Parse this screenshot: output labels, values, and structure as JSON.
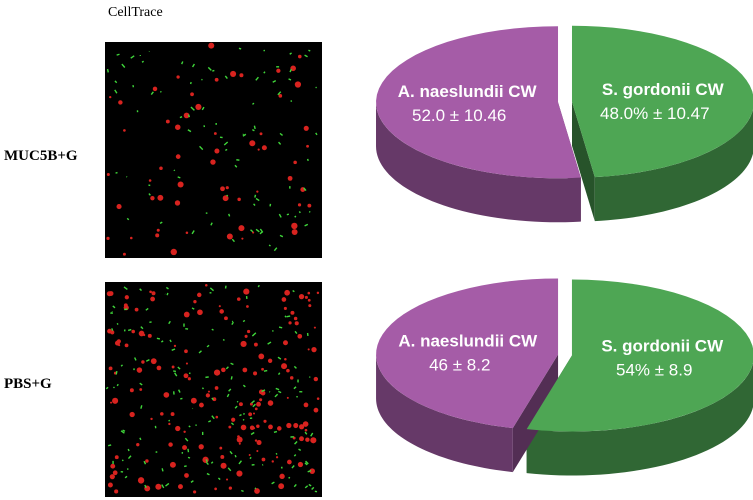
{
  "column_header": "CellTrace",
  "row_labels": [
    "MUC5B+G",
    "PBS+G"
  ],
  "chart_data": [
    {
      "type": "pie",
      "categories": [
        "S. gordonii CW",
        "A. naeslundii CW"
      ],
      "values": [
        48.0,
        52.0
      ],
      "value_labels": [
        "48.0% ± 10.47",
        "52.0 ± 10.46"
      ],
      "colors": [
        "#4ea654",
        "#a55ca7"
      ]
    },
    {
      "type": "pie",
      "categories": [
        "S. gordonii CW",
        "A. naeslundii CW"
      ],
      "values": [
        54,
        46
      ],
      "value_labels": [
        "54% ± 8.9",
        "46 ± 8.2"
      ],
      "colors": [
        "#4ea654",
        "#a55ca7"
      ]
    }
  ]
}
